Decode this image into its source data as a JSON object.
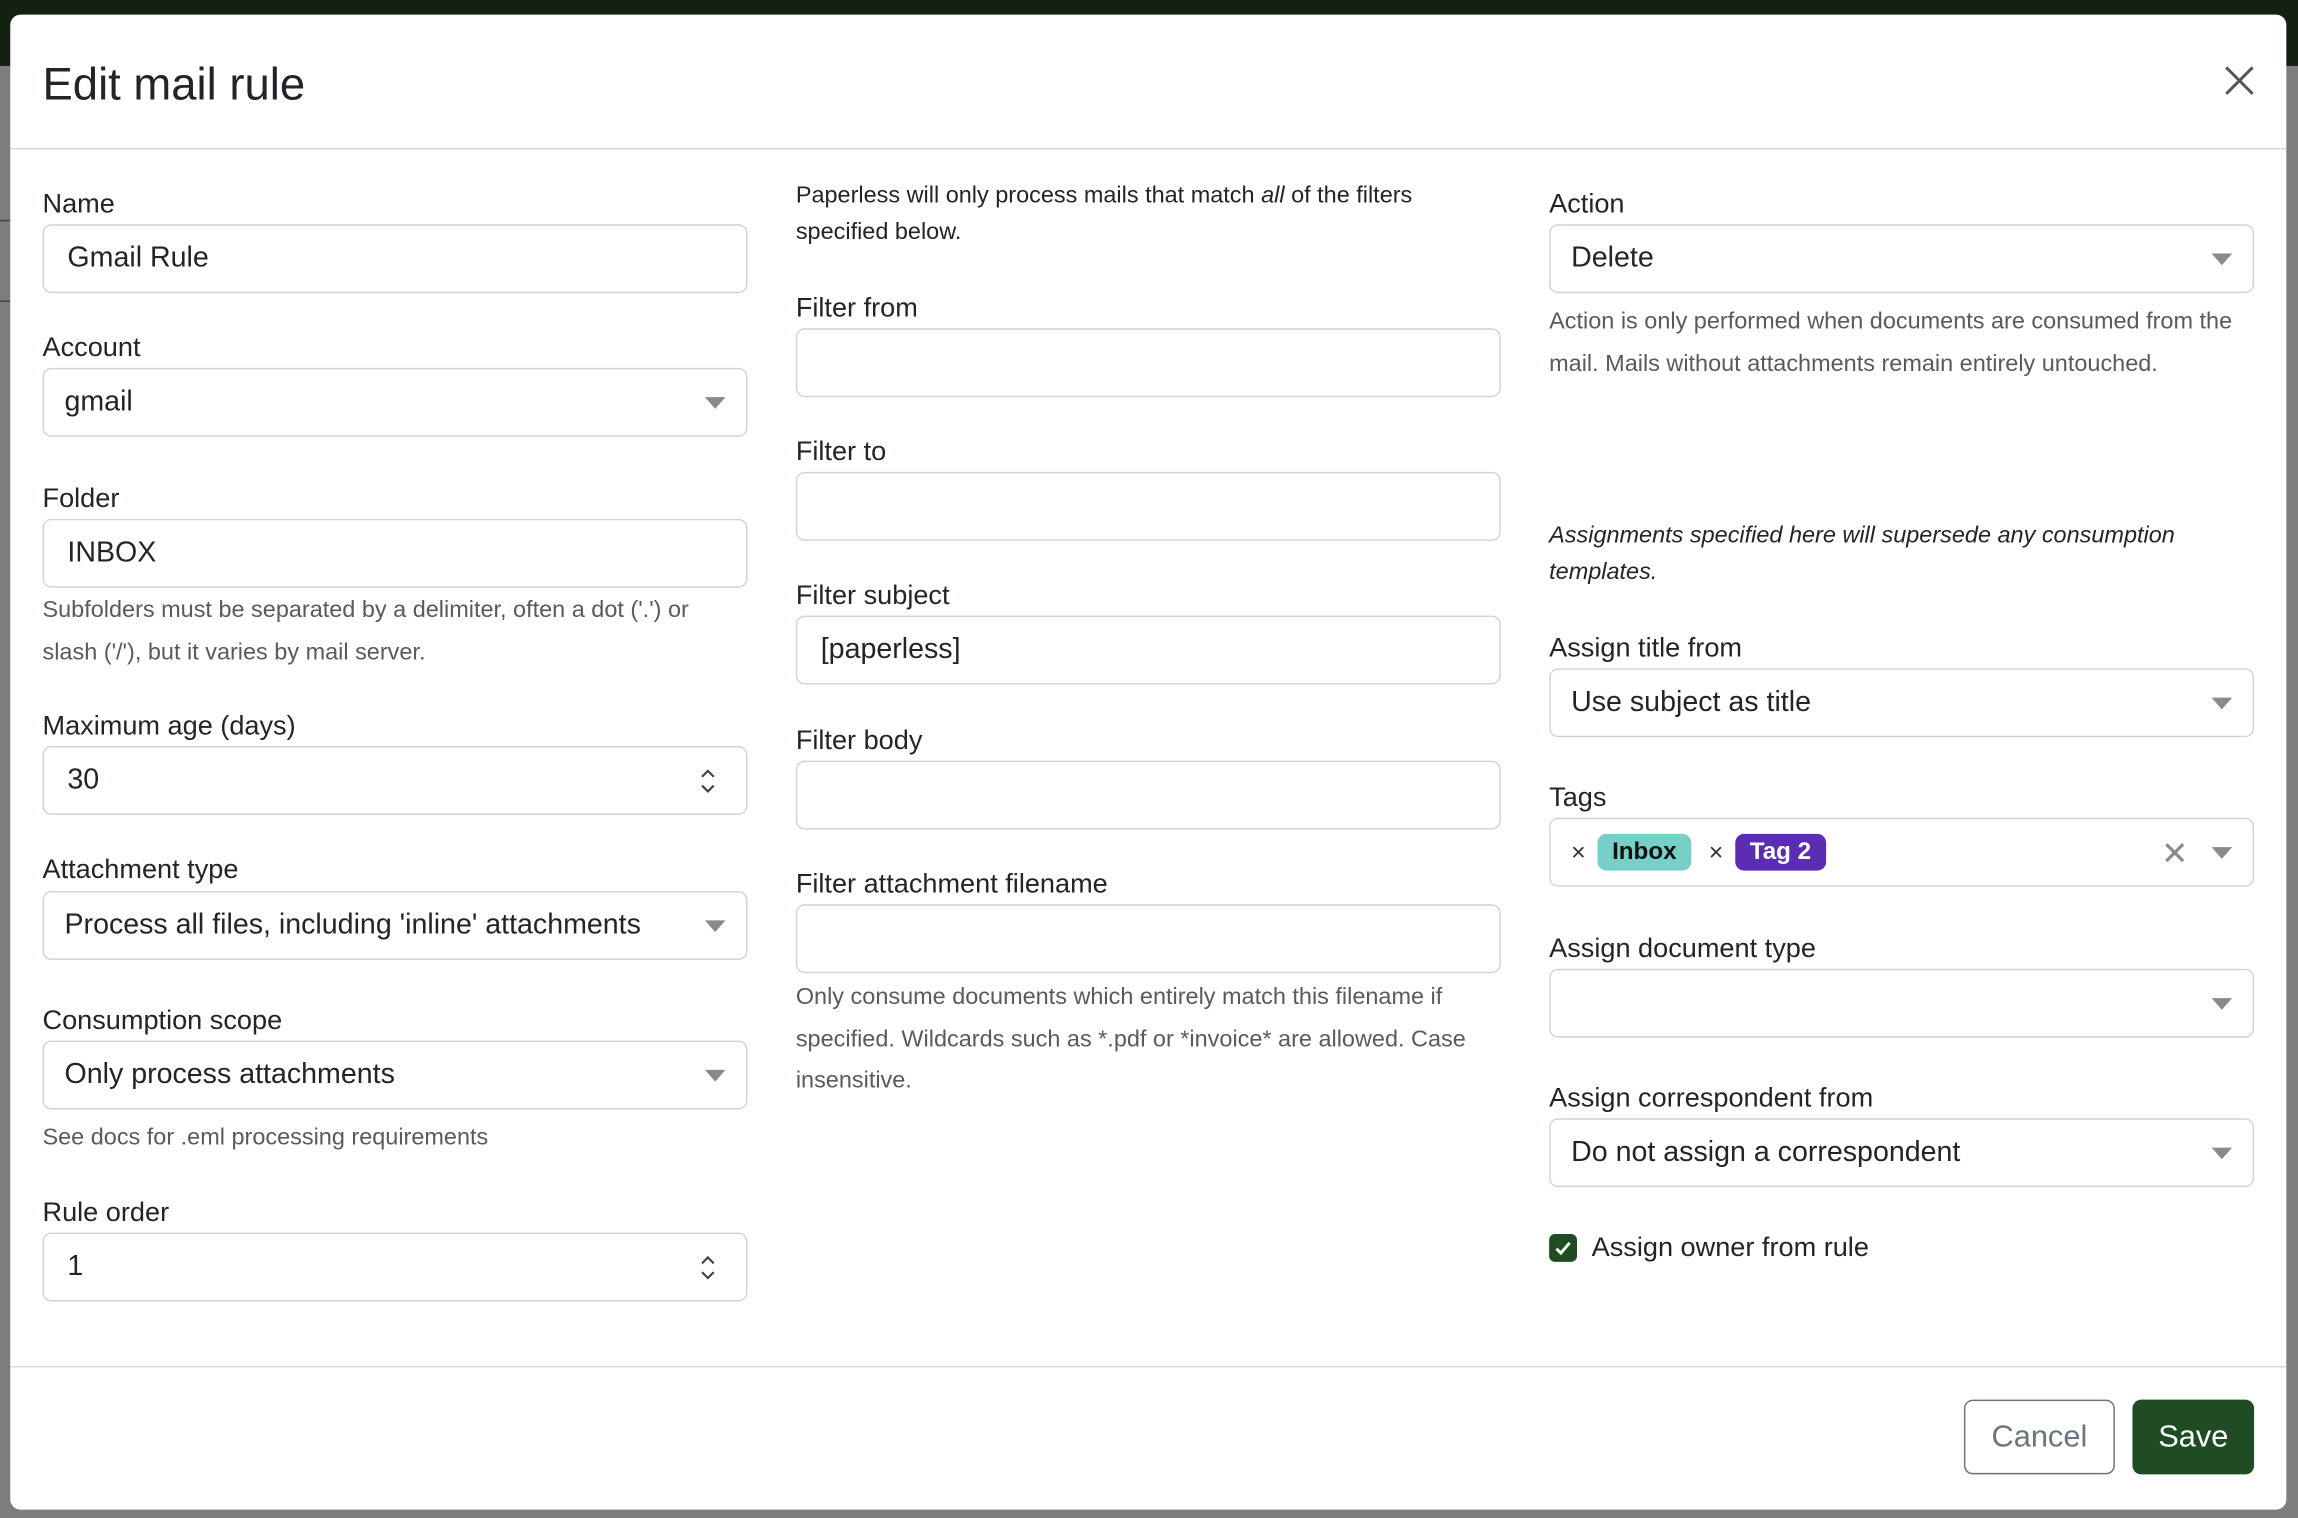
{
  "modal": {
    "title": "Edit mail rule"
  },
  "left": {
    "name": {
      "label": "Name",
      "value": "Gmail Rule"
    },
    "account": {
      "label": "Account",
      "value": "gmail"
    },
    "folder": {
      "label": "Folder",
      "value": "INBOX",
      "help": "Subfolders must be separated by a delimiter, often a dot ('.') or slash ('/'), but it varies by mail server."
    },
    "max_age": {
      "label": "Maximum age (days)",
      "value": "30"
    },
    "attachment_type": {
      "label": "Attachment type",
      "value": "Process all files, including 'inline' attachments"
    },
    "consumption_scope": {
      "label": "Consumption scope",
      "value": "Only process attachments",
      "help": "See docs for .eml processing requirements"
    },
    "rule_order": {
      "label": "Rule order",
      "value": "1"
    }
  },
  "middle": {
    "intro_pre": "Paperless will only process mails that match ",
    "intro_em": "all",
    "intro_post": " of the filters specified below.",
    "filter_from": {
      "label": "Filter from",
      "value": ""
    },
    "filter_to": {
      "label": "Filter to",
      "value": ""
    },
    "filter_subject": {
      "label": "Filter subject",
      "value": "[paperless]"
    },
    "filter_body": {
      "label": "Filter body",
      "value": ""
    },
    "filter_attachment": {
      "label": "Filter attachment filename",
      "value": "",
      "help": "Only consume documents which entirely match this filename if specified. Wildcards such as *.pdf or *invoice* are allowed. Case insensitive."
    }
  },
  "right": {
    "action": {
      "label": "Action",
      "value": "Delete",
      "help": "Action is only performed when documents are consumed from the mail. Mails without attachments remain entirely untouched."
    },
    "assign_note": "Assignments specified here will supersede any consumption templates.",
    "assign_title": {
      "label": "Assign title from",
      "value": "Use subject as title"
    },
    "tags": {
      "label": "Tags",
      "items": [
        {
          "label": "Inbox",
          "bg": "#76d0c8",
          "fg": "#111111"
        },
        {
          "label": "Tag 2",
          "bg": "#5a2db3",
          "fg": "#ffffff"
        }
      ]
    },
    "doc_type": {
      "label": "Assign document type",
      "value": ""
    },
    "correspondent": {
      "label": "Assign correspondent from",
      "value": "Do not assign a correspondent"
    },
    "owner": {
      "label": "Assign owner from rule",
      "checked": true
    }
  },
  "footer": {
    "cancel": "Cancel",
    "save": "Save"
  },
  "colors": {
    "primary": "#1f4c22",
    "backdrop": "#132210"
  }
}
